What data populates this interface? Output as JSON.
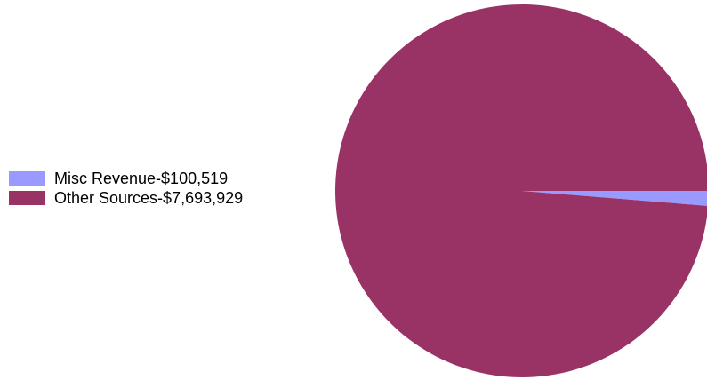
{
  "chart_data": {
    "type": "pie",
    "title": "",
    "legend_position": "left",
    "slices": [
      {
        "label": "Misc Revenue",
        "value": 100519,
        "legend_text": "Misc Revenue-$100,519",
        "color": "#9999ff"
      },
      {
        "label": "Other Sources",
        "value": 7693929,
        "legend_text": "Other Sources-$7,693,929",
        "color": "#993366"
      }
    ]
  }
}
